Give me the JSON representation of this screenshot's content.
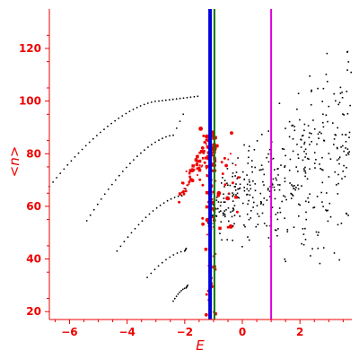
{
  "chart_data": {
    "type": "scatter",
    "title": "",
    "xlabel": "E",
    "ylabel": "<n>",
    "xlim": [
      -6.7,
      3.8
    ],
    "ylim": [
      17,
      135
    ],
    "x_ticks": [
      -6,
      -4,
      -2,
      0,
      2
    ],
    "y_ticks": [
      20,
      40,
      60,
      80,
      100,
      120
    ],
    "x_tick_labels": [
      "−6",
      "−4",
      "−2",
      "0",
      "2"
    ],
    "y_tick_labels": [
      "20",
      "40",
      "60",
      "80",
      "100",
      "120"
    ],
    "grid": false,
    "legend": "none",
    "colors": {
      "axis": "#ee0000",
      "curves": "#000000",
      "red_points": "#ee0000",
      "scatter": "#000000",
      "line_blue": "#0000dd",
      "line_green": "#007700",
      "line_magenta": "#dd00dd"
    },
    "vertical_lines": [
      {
        "x": -1.12,
        "color": "#0000dd",
        "style": "thick"
      },
      {
        "x": -0.97,
        "color": "#007700",
        "style": "thin"
      },
      {
        "x": 1.0,
        "color": "#dd00dd",
        "style": "thin"
      }
    ],
    "series": [
      {
        "kind": "dotted-curve",
        "color": "#000000",
        "x_start": -6.7,
        "y_start": 67.5,
        "x_end": -1.55,
        "y_end": 101.8,
        "knee_x": -2.9,
        "knee_y": 100
      },
      {
        "kind": "dotted-curve",
        "color": "#000000",
        "x_start": -5.4,
        "y_start": 54.5,
        "x_end": -2.05,
        "y_end": 95,
        "knee_x": -2.4,
        "knee_y": 87
      },
      {
        "kind": "dotted-curve",
        "color": "#000000",
        "x_start": -4.35,
        "y_start": 43,
        "x_end": -1.9,
        "y_end": 68,
        "knee_x": -2.1,
        "knee_y": 64
      },
      {
        "kind": "dotted-curve",
        "color": "#000000",
        "x_start": -3.3,
        "y_start": 33,
        "x_end": -1.95,
        "y_end": 44,
        "knee_x": -2.0,
        "knee_y": 43
      },
      {
        "kind": "dotted-curve",
        "color": "#000000",
        "x_start": -2.4,
        "y_start": 24,
        "x_end": -1.9,
        "y_end": 30,
        "knee_x": -1.95,
        "knee_y": 29
      },
      {
        "kind": "red-cluster",
        "color": "#ee0000",
        "x_range": [
          -2.3,
          0.0
        ],
        "y_range": [
          17,
          96
        ],
        "count": 180
      },
      {
        "kind": "black-scatter",
        "color": "#000000",
        "x_range": [
          -1.2,
          3.8
        ],
        "y_range": [
          20,
          135
        ],
        "count": 430
      }
    ]
  }
}
